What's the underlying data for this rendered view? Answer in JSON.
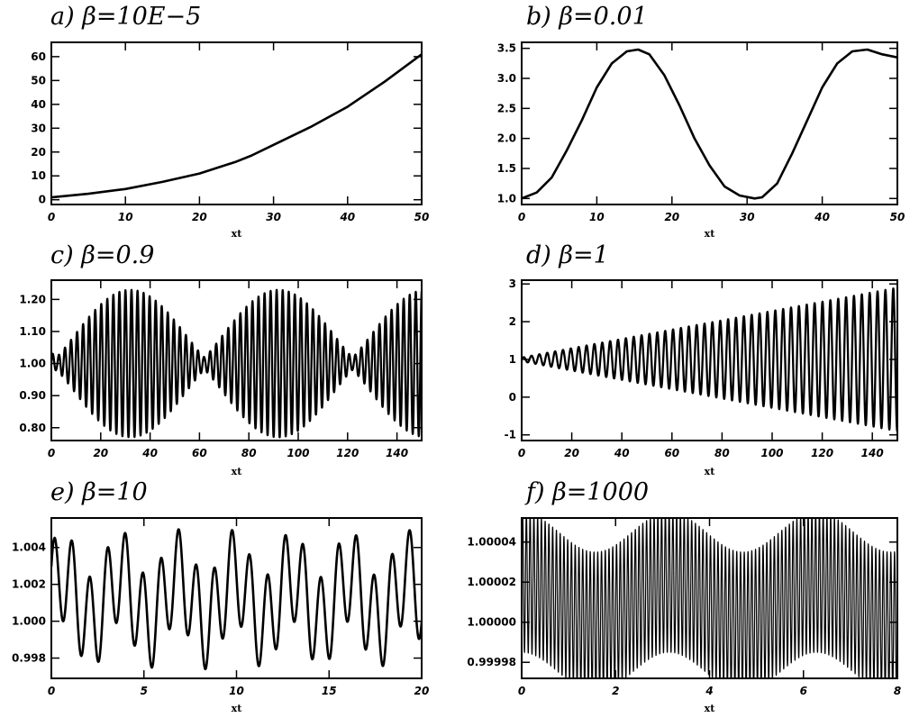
{
  "chart_data": [
    {
      "panel": "a",
      "type": "line",
      "title": "a) β=10E−5",
      "xlabel": "xt",
      "ylabel": "",
      "xlim": [
        0,
        50
      ],
      "ylim": [
        -2,
        66
      ],
      "xticks": [
        0,
        10,
        20,
        30,
        40,
        50
      ],
      "xtick_labels": [
        "0",
        "10",
        "20",
        "30",
        "40",
        "50"
      ],
      "yticks": [
        0,
        10,
        20,
        30,
        40,
        50,
        60
      ],
      "ytick_labels": [
        "0",
        "10",
        "20",
        "30",
        "40",
        "50",
        "60"
      ],
      "x": [
        0,
        5,
        10,
        15,
        20,
        25,
        27,
        30,
        35,
        40,
        45,
        50
      ],
      "y": [
        1.0,
        2.5,
        4.5,
        7.5,
        11.0,
        16.0,
        18.5,
        23.0,
        30.5,
        39.0,
        49.5,
        61.0
      ],
      "grid": false
    },
    {
      "panel": "b",
      "type": "line",
      "title": "b) β=0.01",
      "xlabel": "xt",
      "ylabel": "",
      "xlim": [
        0,
        50
      ],
      "ylim": [
        0.9,
        3.6
      ],
      "xticks": [
        0,
        10,
        20,
        30,
        40,
        50
      ],
      "xtick_labels": [
        "0",
        "10",
        "20",
        "30",
        "40",
        "50"
      ],
      "yticks": [
        1.0,
        1.5,
        2.0,
        2.5,
        3.0,
        3.5
      ],
      "ytick_labels": [
        "1.0",
        "1.5",
        "2.0",
        "2.5",
        "3.0",
        "3.5"
      ],
      "x": [
        0,
        2,
        4,
        6,
        8,
        10,
        12,
        14,
        15.5,
        17,
        19,
        21,
        23,
        25,
        27,
        29,
        31,
        32,
        34,
        36,
        38,
        40,
        42,
        44,
        46,
        48,
        50
      ],
      "y": [
        1.0,
        1.1,
        1.35,
        1.8,
        2.3,
        2.85,
        3.25,
        3.45,
        3.48,
        3.4,
        3.05,
        2.55,
        2.0,
        1.55,
        1.2,
        1.05,
        1.0,
        1.02,
        1.25,
        1.75,
        2.3,
        2.85,
        3.25,
        3.45,
        3.48,
        3.4,
        3.35
      ],
      "grid": false
    },
    {
      "panel": "c",
      "type": "line",
      "title": "c) β=0.9",
      "xlabel": "xt",
      "ylabel": "",
      "xlim": [
        0,
        150
      ],
      "ylim": [
        0.76,
        1.26
      ],
      "xticks": [
        0,
        20,
        40,
        60,
        80,
        100,
        120,
        140
      ],
      "xtick_labels": [
        "0",
        "20",
        "40",
        "60",
        "80",
        "100",
        "120",
        "140"
      ],
      "yticks": [
        0.8,
        0.9,
        1.0,
        1.1,
        1.2
      ],
      "ytick_labels": [
        "0.80",
        "0.90",
        "1.00",
        "1.10",
        "1.20"
      ],
      "oscillation": {
        "center": 1.0,
        "amplitude_max": 0.23,
        "amplitude_min": 0.02,
        "amplitude_peaks_x": [
          32,
          92,
          150
        ],
        "amplitude_nodes_x": [
          2,
          62,
          122
        ],
        "carrier_period": 2.45
      },
      "grid": false
    },
    {
      "panel": "d",
      "type": "line",
      "title": "d) β=1",
      "xlabel": "xt",
      "ylabel": "",
      "xlim": [
        0,
        150
      ],
      "ylim": [
        -1.15,
        3.1
      ],
      "xticks": [
        0,
        20,
        40,
        60,
        80,
        100,
        120,
        140
      ],
      "xtick_labels": [
        "0",
        "20",
        "40",
        "60",
        "80",
        "100",
        "120",
        "140"
      ],
      "yticks": [
        -1,
        0,
        1,
        2,
        3
      ],
      "ytick_labels": [
        "-1",
        "0",
        "1",
        "2",
        "3"
      ],
      "oscillation": {
        "center": 1.0,
        "amplitude_at_start": 0.05,
        "amplitude_at_end": 1.9,
        "growth": "linear",
        "carrier_period": 3.14
      },
      "grid": false
    },
    {
      "panel": "e",
      "type": "line",
      "title": "e) β=10",
      "xlabel": "xt",
      "ylabel": "",
      "xlim": [
        0,
        20
      ],
      "ylim": [
        0.9969,
        1.0056
      ],
      "xticks": [
        0,
        5,
        10,
        15,
        20
      ],
      "xtick_labels": [
        "0",
        "5",
        "10",
        "15",
        "20"
      ],
      "yticks": [
        0.998,
        1.0,
        1.002,
        1.004
      ],
      "ytick_labels": [
        "0.998",
        "1.000",
        "1.002",
        "1.004"
      ],
      "oscillation": {
        "center": 1.0012,
        "components": [
          {
            "amplitude": 0.0025,
            "period": 0.96
          },
          {
            "amplitude": 0.0013,
            "period": 3.1
          }
        ]
      },
      "grid": false
    },
    {
      "panel": "f",
      "type": "line",
      "title": "f) β=1000",
      "xlabel": "xt",
      "ylabel": "",
      "xlim": [
        0,
        8
      ],
      "ylim": [
        0.999972,
        1.000052
      ],
      "xticks": [
        0,
        2,
        4,
        6,
        8
      ],
      "xtick_labels": [
        "0",
        "2",
        "4",
        "6",
        "8"
      ],
      "yticks": [
        0.99998,
        1.0,
        1.00002,
        1.00004
      ],
      "ytick_labels": [
        "0.99998",
        "1.00000",
        "1.00002",
        "1.00004"
      ],
      "oscillation": {
        "slow_center": 1.00001,
        "slow_amplitude": 1e-05,
        "slow_period": 3.14,
        "slow_phase_peak_x": 0,
        "fast_amplitude": 3.5e-05,
        "fast_period": 0.08
      },
      "grid": false
    }
  ]
}
